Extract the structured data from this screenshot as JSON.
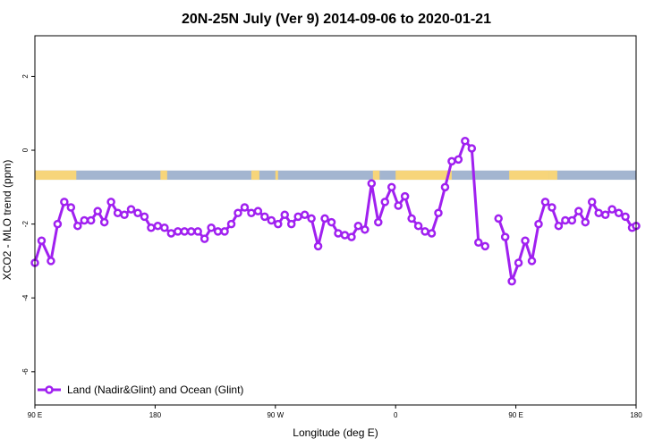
{
  "chart_data": {
    "type": "line",
    "title": "20N-25N July (Ver 9)   2014-09-06 to 2020-01-21",
    "xlabel": "Longitude (deg E)",
    "ylabel": "XCO2 - MLO trend (ppm)",
    "x_ticks": [
      {
        "value": 90,
        "label": "90 E"
      },
      {
        "value": 180,
        "label": "180"
      },
      {
        "value": 270,
        "label": "90 W"
      },
      {
        "value": 360,
        "label": "0"
      },
      {
        "value": 450,
        "label": "90 E"
      },
      {
        "value": 540,
        "label": "180"
      }
    ],
    "y_ticks": [
      {
        "value": 2,
        "label": "2"
      },
      {
        "value": 0,
        "label": "0"
      },
      {
        "value": -2,
        "label": "-2"
      },
      {
        "value": -4,
        "label": "-4"
      },
      {
        "value": -6,
        "label": "-6"
      }
    ],
    "xlim": [
      90,
      540
    ],
    "ylim": [
      -6.9,
      3.1
    ],
    "grid": false,
    "legend_position": "bottom-left",
    "land_ocean_strip": {
      "y_top": -0.55,
      "y_bottom": -0.8,
      "ocean_color": "#a3b5d0",
      "land_color": "#f7d57a",
      "land_ranges_lon": [
        [
          90,
          121
        ],
        [
          184,
          189
        ],
        [
          252,
          258
        ],
        [
          270,
          272
        ],
        [
          343,
          348
        ],
        [
          360,
          402
        ],
        [
          445,
          475
        ],
        [
          475,
          481
        ]
      ]
    },
    "series": [
      {
        "name": "Land (Nadir&Glint) and Ocean (Glint)",
        "color": "#a020f0",
        "x": [
          90,
          95,
          102,
          107,
          112,
          117,
          122,
          127,
          132,
          137,
          142,
          147,
          152,
          157,
          162,
          167,
          172,
          177,
          182,
          187,
          192,
          197,
          202,
          207,
          212,
          217,
          222,
          227,
          232,
          237,
          242,
          247,
          252,
          257,
          262,
          267,
          272,
          277,
          282,
          287,
          292,
          297,
          302,
          307,
          312,
          317,
          322,
          327,
          332,
          337,
          342,
          347,
          352,
          357,
          362,
          367,
          372,
          377,
          382,
          387,
          392,
          397,
          402,
          407,
          412,
          417,
          422,
          427,
          432,
          437,
          442,
          447,
          452,
          457,
          462,
          467,
          472,
          477,
          482,
          487,
          492,
          497,
          502,
          507,
          512,
          517,
          522,
          527,
          532,
          537,
          540
        ],
        "y": [
          -3.05,
          -2.45,
          -3.0,
          -2.0,
          -1.4,
          -1.55,
          -2.05,
          -1.9,
          -1.9,
          -1.65,
          -1.95,
          -1.4,
          -1.7,
          -1.75,
          -1.6,
          -1.7,
          -1.8,
          -2.1,
          -2.05,
          -2.1,
          -2.25,
          -2.2,
          -2.2,
          -2.2,
          -2.2,
          -2.4,
          -2.1,
          -2.2,
          -2.2,
          -2.0,
          -1.7,
          -1.55,
          -1.7,
          -1.65,
          -1.8,
          -1.9,
          -2.0,
          -1.75,
          -2.0,
          -1.8,
          -1.75,
          -1.85,
          -2.6,
          -1.85,
          -1.95,
          -2.25,
          -2.3,
          -2.35,
          -2.05,
          -2.15,
          -0.9,
          -1.95,
          -1.4,
          -1.0,
          -1.5,
          -1.25,
          -1.85,
          -2.05,
          -2.2,
          -2.25,
          -1.7,
          -1.0,
          -0.3,
          -0.25,
          0.25,
          0.05,
          -2.5,
          -2.6,
          null,
          -1.85,
          -2.35,
          -3.55,
          -3.05,
          -2.45,
          -3.0,
          -2.0,
          -1.4,
          -1.55,
          -2.05,
          -1.9,
          -1.9,
          -1.65,
          -1.95,
          -1.4,
          -1.7,
          -1.75,
          -1.6,
          -1.7,
          -1.8,
          -2.1,
          -2.05
        ]
      }
    ]
  }
}
